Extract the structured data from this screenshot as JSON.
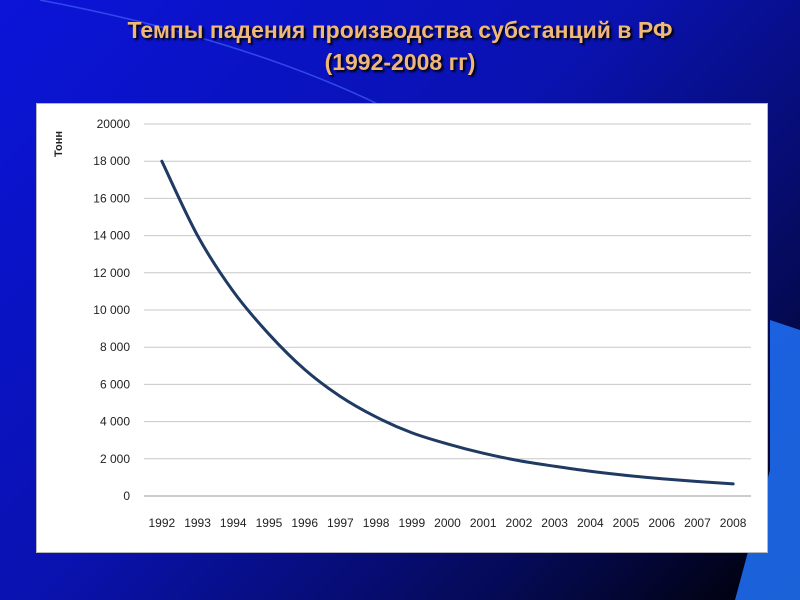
{
  "slide": {
    "title_line1": "Темпы падения производства субстанций в РФ",
    "title_line2": "(1992-2008 гг)"
  },
  "colors": {
    "background": "#0a12b0",
    "title": "#f0b878",
    "series_line": "#1f3a63",
    "grid": "#c8c8c8"
  },
  "chart_data": {
    "type": "line",
    "title": "",
    "xlabel": "",
    "ylabel": "Тонн",
    "x": [
      "1992",
      "1993",
      "1994",
      "1995",
      "1996",
      "1997",
      "1998",
      "1999",
      "2000",
      "2001",
      "2002",
      "2003",
      "2004",
      "2005",
      "2006",
      "2007",
      "2008"
    ],
    "y_ticks": [
      0,
      2000,
      4000,
      6000,
      8000,
      10000,
      12000,
      14000,
      16000,
      18000,
      20000
    ],
    "y_tick_labels": [
      "0",
      "2 000",
      "4 000",
      "6 000",
      "8 000",
      "10 000",
      "12 000",
      "14 000",
      "16 000",
      "18 000",
      "20000"
    ],
    "ylim": [
      0,
      20000
    ],
    "grid": true,
    "legend": "none",
    "series": [
      {
        "values": [
          18000,
          14000,
          11000,
          8700,
          6800,
          5350,
          4250,
          3400,
          2800,
          2300,
          1900,
          1600,
          1330,
          1110,
          930,
          780,
          650
        ]
      }
    ]
  }
}
